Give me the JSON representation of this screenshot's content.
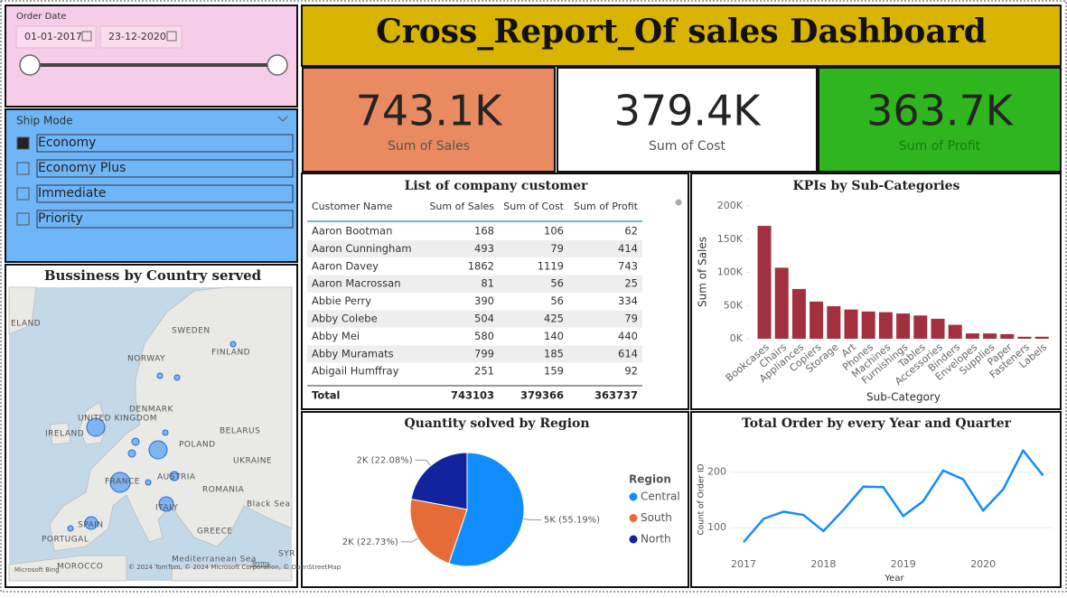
{
  "header": {
    "title": "Cross_Report_Of sales Dashboard"
  },
  "date_slicer": {
    "label": "Order Date",
    "start": "01-01-2017",
    "end": "23-12-2020"
  },
  "ship_mode": {
    "label": "Ship Mode",
    "options": [
      "Economy",
      "Economy Plus",
      "Immediate",
      "Priority"
    ],
    "selected": "Economy"
  },
  "kpis": [
    {
      "value": "743.1K",
      "label": "Sum of Sales",
      "color": "#ea8a60"
    },
    {
      "value": "379.4K",
      "label": "Sum of Cost",
      "color": "#ffffff"
    },
    {
      "value": "363.7K",
      "label": "Sum of Profit",
      "color": "#2fb61f"
    }
  ],
  "map": {
    "title": "Bussiness by Country served",
    "labels": [
      "ELAND",
      "SWEDEN",
      "FINLAND",
      "NORWAY",
      "UNITED KINGDOM",
      "DENMARK",
      "IRELAND",
      "BELARUS",
      "POLAND",
      "FRANCE",
      "AUSTRIA",
      "UKRAINE",
      "ROMANIA",
      "Black Sea",
      "ITALY",
      "SPAIN",
      "GREECE",
      "PORTUGAL",
      "MOROCCO",
      "SYR",
      "Mediterranean Sea"
    ],
    "attribution": "© 2024 TomTom, © 2024 Microsoft Corporation, © OpenStreetMap",
    "terms": "Terms",
    "logo": "Microsoft Bing"
  },
  "table": {
    "title": "List of company customer",
    "columns": [
      "Customer Name",
      "Sum of Sales",
      "Sum of Cost",
      "Sum of Profit"
    ],
    "rows": [
      [
        "Aaron Bootman",
        168,
        106,
        62
      ],
      [
        "Aaron Cunningham",
        493,
        79,
        414
      ],
      [
        "Aaron Davey",
        1862,
        1119,
        743
      ],
      [
        "Aaron Macrossan",
        81,
        56,
        25
      ],
      [
        "Abbie Perry",
        390,
        56,
        334
      ],
      [
        "Abby Colebe",
        504,
        425,
        79
      ],
      [
        "Abby Mei",
        580,
        140,
        440
      ],
      [
        "Abby Muramats",
        799,
        185,
        614
      ],
      [
        "Abigail Humffray",
        251,
        159,
        92
      ]
    ],
    "total": [
      "Total",
      743103,
      379366,
      363737
    ]
  },
  "chart_data": [
    {
      "type": "bar",
      "title": "KPIs by Sub-Categories",
      "x_label": "Sub-Category",
      "y_label": "Sum of Sales",
      "categories": [
        "Bookcases",
        "Chairs",
        "Appliances",
        "Copiers",
        "Storage",
        "Art",
        "Phones",
        "Machines",
        "Furnishings",
        "Tables",
        "Accessories",
        "Binders",
        "Envelopes",
        "Supplies",
        "Paper",
        "Fasteners",
        "Labels"
      ],
      "values": [
        170000,
        107000,
        75000,
        56000,
        49000,
        44000,
        41000,
        40000,
        38000,
        35000,
        30000,
        21000,
        8000,
        8000,
        7000,
        3000,
        3000
      ],
      "color": "#a3303e",
      "ylim": [
        0,
        200000
      ],
      "yticks": [
        {
          "value": 0,
          "label": "0K"
        },
        {
          "value": 50000,
          "label": "50K"
        },
        {
          "value": 100000,
          "label": "100K"
        },
        {
          "value": 150000,
          "label": "150K"
        },
        {
          "value": 200000,
          "label": "200K"
        }
      ]
    },
    {
      "type": "pie",
      "title": "Quantity solved by Region",
      "legend_title": "Region",
      "legend": "right",
      "categories": [
        "Central",
        "South",
        "North"
      ],
      "values": [
        55.19,
        22.73,
        22.08
      ],
      "value_labels": [
        "5K (55.19%)",
        "2K (22.73%)",
        "2K (22.08%)"
      ],
      "colors": [
        "#118dff",
        "#e66c37",
        "#12239e"
      ]
    },
    {
      "type": "line",
      "title": "Total Order by every Year and Quarter",
      "x_label": "Year",
      "y_label": "Count of Order ID",
      "categories": [
        "2017",
        null,
        null,
        null,
        "2018",
        null,
        null,
        null,
        "2019",
        null,
        null,
        null,
        "2020",
        null,
        null,
        null
      ],
      "series": [
        {
          "name": "Count of Order ID",
          "color": "#118dff",
          "values": [
            74,
            116,
            129,
            123,
            94,
            132,
            174,
            173,
            121,
            148,
            203,
            187,
            131,
            169,
            239,
            194
          ]
        }
      ],
      "ylim": [
        50,
        245
      ],
      "yticks": [
        100,
        200
      ]
    }
  ]
}
